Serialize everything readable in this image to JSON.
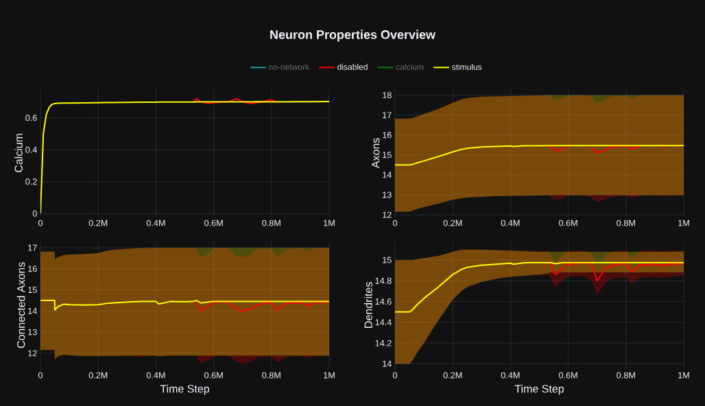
{
  "chart_data": [
    {
      "type": "line",
      "title": "Neuron Properties Overview",
      "ylabel": "Calcium",
      "legend": "top",
      "grid": true,
      "x": [
        0,
        10000,
        20000,
        30000,
        40000,
        50000,
        60000,
        80000,
        100000,
        150000,
        200000,
        230000,
        250000,
        300000,
        350000,
        400000,
        410000,
        450000,
        500000,
        530000,
        540000,
        555000,
        580000,
        600000,
        650000,
        680000,
        700000,
        730000,
        750000,
        800000,
        820000,
        850000,
        900000,
        930000,
        950000,
        1000000
      ],
      "xlim": [
        0,
        1000000
      ],
      "xticks": [
        0,
        {
          "value": 200000,
          "label": "0.2M"
        },
        {
          "value": 400000,
          "label": "0.4M"
        },
        {
          "value": 600000,
          "label": "0.6M"
        },
        {
          "value": 800000,
          "label": "0.8M"
        },
        {
          "value": 1000000,
          "label": "1M"
        }
      ],
      "ylim": [
        -0.02,
        0.78
      ],
      "yticks": [
        0,
        0.2,
        0.4,
        0.6
      ],
      "series": [
        {
          "name": "no-network",
          "color": "#1f9e9e",
          "values": [
            null,
            null,
            null,
            null,
            null,
            null,
            null,
            null,
            null,
            null,
            null,
            null,
            null,
            null,
            null,
            null,
            null,
            null,
            null,
            null,
            null,
            null,
            null,
            null,
            null,
            null,
            null,
            null,
            null,
            null,
            null,
            null,
            null,
            null,
            null,
            null
          ]
        },
        {
          "name": "disabled",
          "color": "#ff0000",
          "values": [
            null,
            null,
            null,
            null,
            null,
            null,
            null,
            null,
            null,
            null,
            null,
            null,
            null,
            null,
            null,
            null,
            null,
            null,
            null,
            0.699,
            0.72,
            0.7,
            0.69,
            0.695,
            0.7,
            0.72,
            0.7,
            0.69,
            0.695,
            0.713,
            0.7,
            null,
            null,
            null,
            null,
            null
          ]
        },
        {
          "name": "calcium",
          "color": "#008000",
          "values": [
            null,
            null,
            null,
            null,
            null,
            null,
            null,
            null,
            null,
            null,
            null,
            null,
            null,
            null,
            null,
            null,
            null,
            null,
            null,
            null,
            null,
            null,
            null,
            null,
            null,
            null,
            null,
            null,
            null,
            null,
            null,
            null,
            null,
            null,
            null,
            null
          ]
        },
        {
          "name": "stimulus",
          "color": "#ffff00",
          "values": [
            0,
            0.5,
            0.62,
            0.665,
            0.685,
            0.69,
            0.692,
            0.693,
            0.693,
            0.694,
            0.695,
            0.696,
            0.696,
            0.697,
            0.698,
            0.698,
            0.699,
            0.699,
            0.699,
            0.699,
            0.7,
            0.7,
            0.7,
            0.7,
            0.7,
            0.7,
            0.7,
            0.7,
            0.702,
            0.7,
            0.7,
            0.7,
            0.701,
            0.702,
            0.702,
            0.703
          ]
        }
      ]
    },
    {
      "type": "line",
      "ylabel": "Axons",
      "grid": true,
      "x": [
        0,
        10000,
        20000,
        30000,
        40000,
        50000,
        60000,
        80000,
        100000,
        150000,
        200000,
        230000,
        250000,
        300000,
        350000,
        400000,
        410000,
        450000,
        500000,
        530000,
        540000,
        555000,
        580000,
        600000,
        650000,
        680000,
        700000,
        730000,
        750000,
        800000,
        820000,
        850000,
        900000,
        930000,
        950000,
        1000000
      ],
      "xlim": [
        0,
        1000000
      ],
      "xticks": [
        0,
        {
          "value": 200000,
          "label": "0.2M"
        },
        {
          "value": 400000,
          "label": "0.4M"
        },
        {
          "value": 600000,
          "label": "0.6M"
        },
        {
          "value": 800000,
          "label": "0.8M"
        },
        {
          "value": 1000000,
          "label": "1M"
        }
      ],
      "ylim": [
        11.9,
        18.3
      ],
      "yticks": [
        12,
        13,
        14,
        15,
        16,
        17,
        18
      ],
      "series": [
        {
          "color": "#ff0000",
          "values": [
            null,
            null,
            null,
            null,
            null,
            null,
            null,
            null,
            null,
            null,
            null,
            null,
            null,
            null,
            null,
            null,
            null,
            null,
            null,
            15.47,
            15.4,
            15.2,
            15.3,
            15.45,
            null,
            15.4,
            15.1,
            15.25,
            15.4,
            15.45,
            15.3,
            15.45,
            null,
            15.42,
            15.46,
            null
          ],
          "upper": [
            16.82,
            16.82,
            16.82,
            16.82,
            16.82,
            16.82,
            16.85,
            16.95,
            17.05,
            17.3,
            17.62,
            17.78,
            17.85,
            17.92,
            17.94,
            17.96,
            17.96,
            17.97,
            17.98,
            18,
            17.95,
            17.75,
            17.85,
            17.97,
            18,
            17.9,
            17.6,
            17.8,
            17.93,
            17.98,
            17.85,
            17.97,
            18,
            17.97,
            17.99,
            18
          ],
          "lower": [
            12.15,
            12.15,
            12.15,
            12.15,
            12.15,
            12.15,
            12.2,
            12.3,
            12.38,
            12.55,
            12.75,
            12.82,
            12.86,
            12.9,
            12.93,
            12.95,
            12.95,
            12.96,
            12.97,
            12.98,
            12.9,
            12.72,
            12.82,
            12.95,
            12.98,
            12.85,
            12.62,
            12.78,
            12.9,
            12.96,
            12.82,
            12.95,
            12.98,
            12.93,
            12.97,
            12.98
          ]
        },
        {
          "color": "#ffff00",
          "values": [
            14.5,
            14.5,
            14.5,
            14.5,
            14.5,
            14.5,
            14.52,
            14.62,
            14.7,
            14.92,
            15.15,
            15.28,
            15.33,
            15.4,
            15.43,
            15.45,
            15.43,
            15.46,
            15.46,
            15.47,
            15.47,
            15.47,
            15.47,
            15.47,
            15.47,
            15.47,
            15.47,
            15.47,
            15.47,
            15.47,
            15.47,
            15.47,
            15.47,
            15.47,
            15.47,
            15.47
          ],
          "upper": [
            16.82,
            16.82,
            16.82,
            16.82,
            16.82,
            16.82,
            16.85,
            16.95,
            17.05,
            17.3,
            17.62,
            17.78,
            17.85,
            17.92,
            17.94,
            17.96,
            17.96,
            17.97,
            17.98,
            18,
            18,
            18,
            18,
            18,
            18,
            18,
            18,
            18,
            18,
            18,
            18,
            18,
            18,
            18,
            18,
            18
          ],
          "lower": [
            12.15,
            12.15,
            12.15,
            12.15,
            12.15,
            12.15,
            12.2,
            12.3,
            12.38,
            12.55,
            12.75,
            12.82,
            12.86,
            12.9,
            12.93,
            12.95,
            12.95,
            12.96,
            12.97,
            12.98,
            12.98,
            12.98,
            12.98,
            12.98,
            12.98,
            12.98,
            12.98,
            12.98,
            12.98,
            12.98,
            12.98,
            12.98,
            12.98,
            12.98,
            12.98,
            12.98
          ]
        }
      ]
    },
    {
      "type": "line",
      "ylabel": "Connected Axons",
      "xlabel": "Time Step",
      "grid": true,
      "x": [
        0,
        10000,
        20000,
        30000,
        49000,
        50000,
        60000,
        80000,
        100000,
        150000,
        200000,
        230000,
        250000,
        300000,
        350000,
        400000,
        410000,
        450000,
        500000,
        530000,
        540000,
        555000,
        580000,
        600000,
        650000,
        680000,
        700000,
        730000,
        750000,
        800000,
        820000,
        850000,
        900000,
        930000,
        950000,
        1000000
      ],
      "xlim": [
        0,
        1000000
      ],
      "xticks": [
        0,
        {
          "value": 200000,
          "label": "0.2M"
        },
        {
          "value": 400000,
          "label": "0.4M"
        },
        {
          "value": 600000,
          "label": "0.6M"
        },
        {
          "value": 800000,
          "label": "0.8M"
        },
        {
          "value": 1000000,
          "label": "1M"
        }
      ],
      "ylim": [
        11.25,
        17.3
      ],
      "yticks": [
        12,
        13,
        14,
        15,
        16,
        17
      ],
      "series": [
        {
          "color": "#ff0000",
          "values": [
            null,
            null,
            null,
            null,
            null,
            null,
            null,
            null,
            null,
            null,
            null,
            null,
            null,
            null,
            null,
            null,
            null,
            null,
            null,
            14.45,
            14.4,
            14.0,
            14.2,
            14.42,
            14.42,
            14.1,
            14.0,
            14.1,
            14.3,
            14.42,
            14.05,
            14.35,
            14.42,
            14.25,
            14.4,
            14.42
          ],
          "upper": [
            16.82,
            16.82,
            16.82,
            16.82,
            16.82,
            16.45,
            16.55,
            16.65,
            16.67,
            16.7,
            16.75,
            16.85,
            16.9,
            16.95,
            16.98,
            17,
            17,
            17,
            17,
            17,
            16.95,
            16.55,
            16.7,
            16.97,
            17,
            16.6,
            16.55,
            16.7,
            16.95,
            16.95,
            16.6,
            16.9,
            17,
            16.85,
            16.98,
            17
          ],
          "lower": [
            12.15,
            12.15,
            12.15,
            12.15,
            12.15,
            11.7,
            11.85,
            11.92,
            11.9,
            11.86,
            11.86,
            11.87,
            11.87,
            11.88,
            11.83,
            11.88,
            11.85,
            11.88,
            11.88,
            11.88,
            11.85,
            11.5,
            11.65,
            11.85,
            11.88,
            11.6,
            11.5,
            11.6,
            11.8,
            11.85,
            11.55,
            11.8,
            11.88,
            11.75,
            11.86,
            11.88
          ]
        },
        {
          "color": "#ffff00",
          "values": [
            14.5,
            14.5,
            14.5,
            14.5,
            14.5,
            14.05,
            14.2,
            14.32,
            14.3,
            14.28,
            14.3,
            14.36,
            14.38,
            14.42,
            14.45,
            14.45,
            14.33,
            14.45,
            14.44,
            14.45,
            14.5,
            14.38,
            14.42,
            14.45,
            14.45,
            14.45,
            14.45,
            14.45,
            14.45,
            14.45,
            14.45,
            14.45,
            14.45,
            14.45,
            14.45,
            14.45
          ],
          "upper": [
            16.82,
            16.82,
            16.82,
            16.82,
            16.82,
            16.45,
            16.55,
            16.65,
            16.67,
            16.7,
            16.75,
            16.85,
            16.9,
            16.95,
            16.98,
            17,
            17,
            17,
            17,
            17,
            17,
            17,
            17,
            17,
            17,
            17,
            17,
            17,
            17,
            17,
            17,
            17,
            17,
            17,
            17,
            17
          ],
          "lower": [
            12.15,
            12.15,
            12.15,
            12.15,
            12.15,
            11.7,
            11.85,
            11.92,
            11.9,
            11.86,
            11.86,
            11.87,
            11.87,
            11.88,
            11.88,
            11.88,
            11.85,
            11.88,
            11.88,
            11.88,
            11.88,
            11.88,
            11.88,
            11.88,
            11.88,
            11.88,
            11.88,
            11.88,
            11.88,
            11.88,
            11.88,
            11.88,
            11.88,
            11.88,
            11.88,
            11.88
          ]
        }
      ]
    },
    {
      "type": "line",
      "ylabel": "Dendrites",
      "xlabel": "Time Step",
      "grid": true,
      "x": [
        0,
        10000,
        20000,
        30000,
        40000,
        50000,
        60000,
        80000,
        100000,
        150000,
        200000,
        230000,
        250000,
        300000,
        350000,
        400000,
        410000,
        450000,
        500000,
        530000,
        540000,
        555000,
        580000,
        600000,
        650000,
        680000,
        700000,
        730000,
        750000,
        800000,
        820000,
        850000,
        900000,
        930000,
        950000,
        1000000
      ],
      "xlim": [
        0,
        1000000
      ],
      "xticks": [
        0,
        {
          "value": 200000,
          "label": "0.2M"
        },
        {
          "value": 400000,
          "label": "0.4M"
        },
        {
          "value": 600000,
          "label": "0.6M"
        },
        {
          "value": 800000,
          "label": "0.8M"
        },
        {
          "value": 1000000,
          "label": "1M"
        }
      ],
      "ylim": [
        13.95,
        15.18
      ],
      "yticks": [
        14,
        14.2,
        14.4,
        14.6,
        14.8,
        15
      ],
      "series": [
        {
          "color": "#ff0000",
          "values": [
            null,
            null,
            null,
            null,
            null,
            null,
            null,
            null,
            null,
            null,
            null,
            null,
            null,
            null,
            null,
            null,
            null,
            null,
            null,
            14.975,
            14.95,
            14.86,
            14.92,
            14.96,
            14.97,
            14.97,
            14.8,
            14.92,
            14.95,
            14.97,
            14.89,
            14.95,
            14.96,
            14.945,
            14.96,
            14.965
          ],
          "upper": [
            15,
            15,
            15,
            15,
            15,
            15,
            15,
            15.01,
            15.02,
            15.04,
            15.08,
            15.1,
            15.1,
            15.1,
            15.095,
            15.09,
            15.09,
            15.085,
            15.08,
            15.09,
            15.05,
            14.98,
            15.05,
            15.09,
            15.09,
            15.07,
            14.94,
            15.05,
            15.08,
            15.09,
            15.02,
            15.09,
            15.09,
            15.08,
            15.09,
            15.09
          ],
          "lower": [
            14,
            14,
            14,
            14,
            14,
            14,
            14.03,
            14.12,
            14.2,
            14.42,
            14.62,
            14.7,
            14.74,
            14.79,
            14.82,
            14.84,
            14.84,
            14.85,
            14.86,
            14.86,
            14.82,
            14.74,
            14.8,
            14.84,
            14.85,
            14.8,
            14.67,
            14.78,
            14.82,
            14.84,
            14.77,
            14.83,
            14.84,
            14.83,
            14.84,
            14.85
          ]
        },
        {
          "color": "#ffff00",
          "values": [
            14.5,
            14.5,
            14.5,
            14.5,
            14.5,
            14.5,
            14.52,
            14.58,
            14.63,
            14.74,
            14.86,
            14.91,
            14.93,
            14.95,
            14.96,
            14.97,
            14.96,
            14.975,
            14.975,
            14.975,
            14.975,
            14.965,
            14.975,
            14.975,
            14.975,
            14.975,
            14.975,
            14.975,
            14.975,
            14.975,
            14.975,
            14.975,
            14.975,
            14.975,
            14.975,
            14.975
          ],
          "upper": [
            15,
            15,
            15,
            15,
            15,
            15,
            15,
            15.01,
            15.02,
            15.04,
            15.08,
            15.1,
            15.1,
            15.1,
            15.095,
            15.09,
            15.09,
            15.085,
            15.08,
            15.08,
            15.08,
            15.08,
            15.08,
            15.08,
            15.08,
            15.08,
            15.08,
            15.08,
            15.08,
            15.08,
            15.08,
            15.08,
            15.08,
            15.08,
            15.08,
            15.08
          ],
          "lower": [
            14,
            14,
            14,
            14,
            14,
            14,
            14.03,
            14.12,
            14.2,
            14.42,
            14.62,
            14.7,
            14.74,
            14.79,
            14.82,
            14.84,
            14.84,
            14.85,
            14.86,
            14.87,
            14.88,
            14.88,
            14.88,
            14.88,
            14.88,
            14.88,
            14.88,
            14.88,
            14.88,
            14.88,
            14.88,
            14.88,
            14.88,
            14.88,
            14.88,
            14.88
          ]
        }
      ]
    }
  ]
}
